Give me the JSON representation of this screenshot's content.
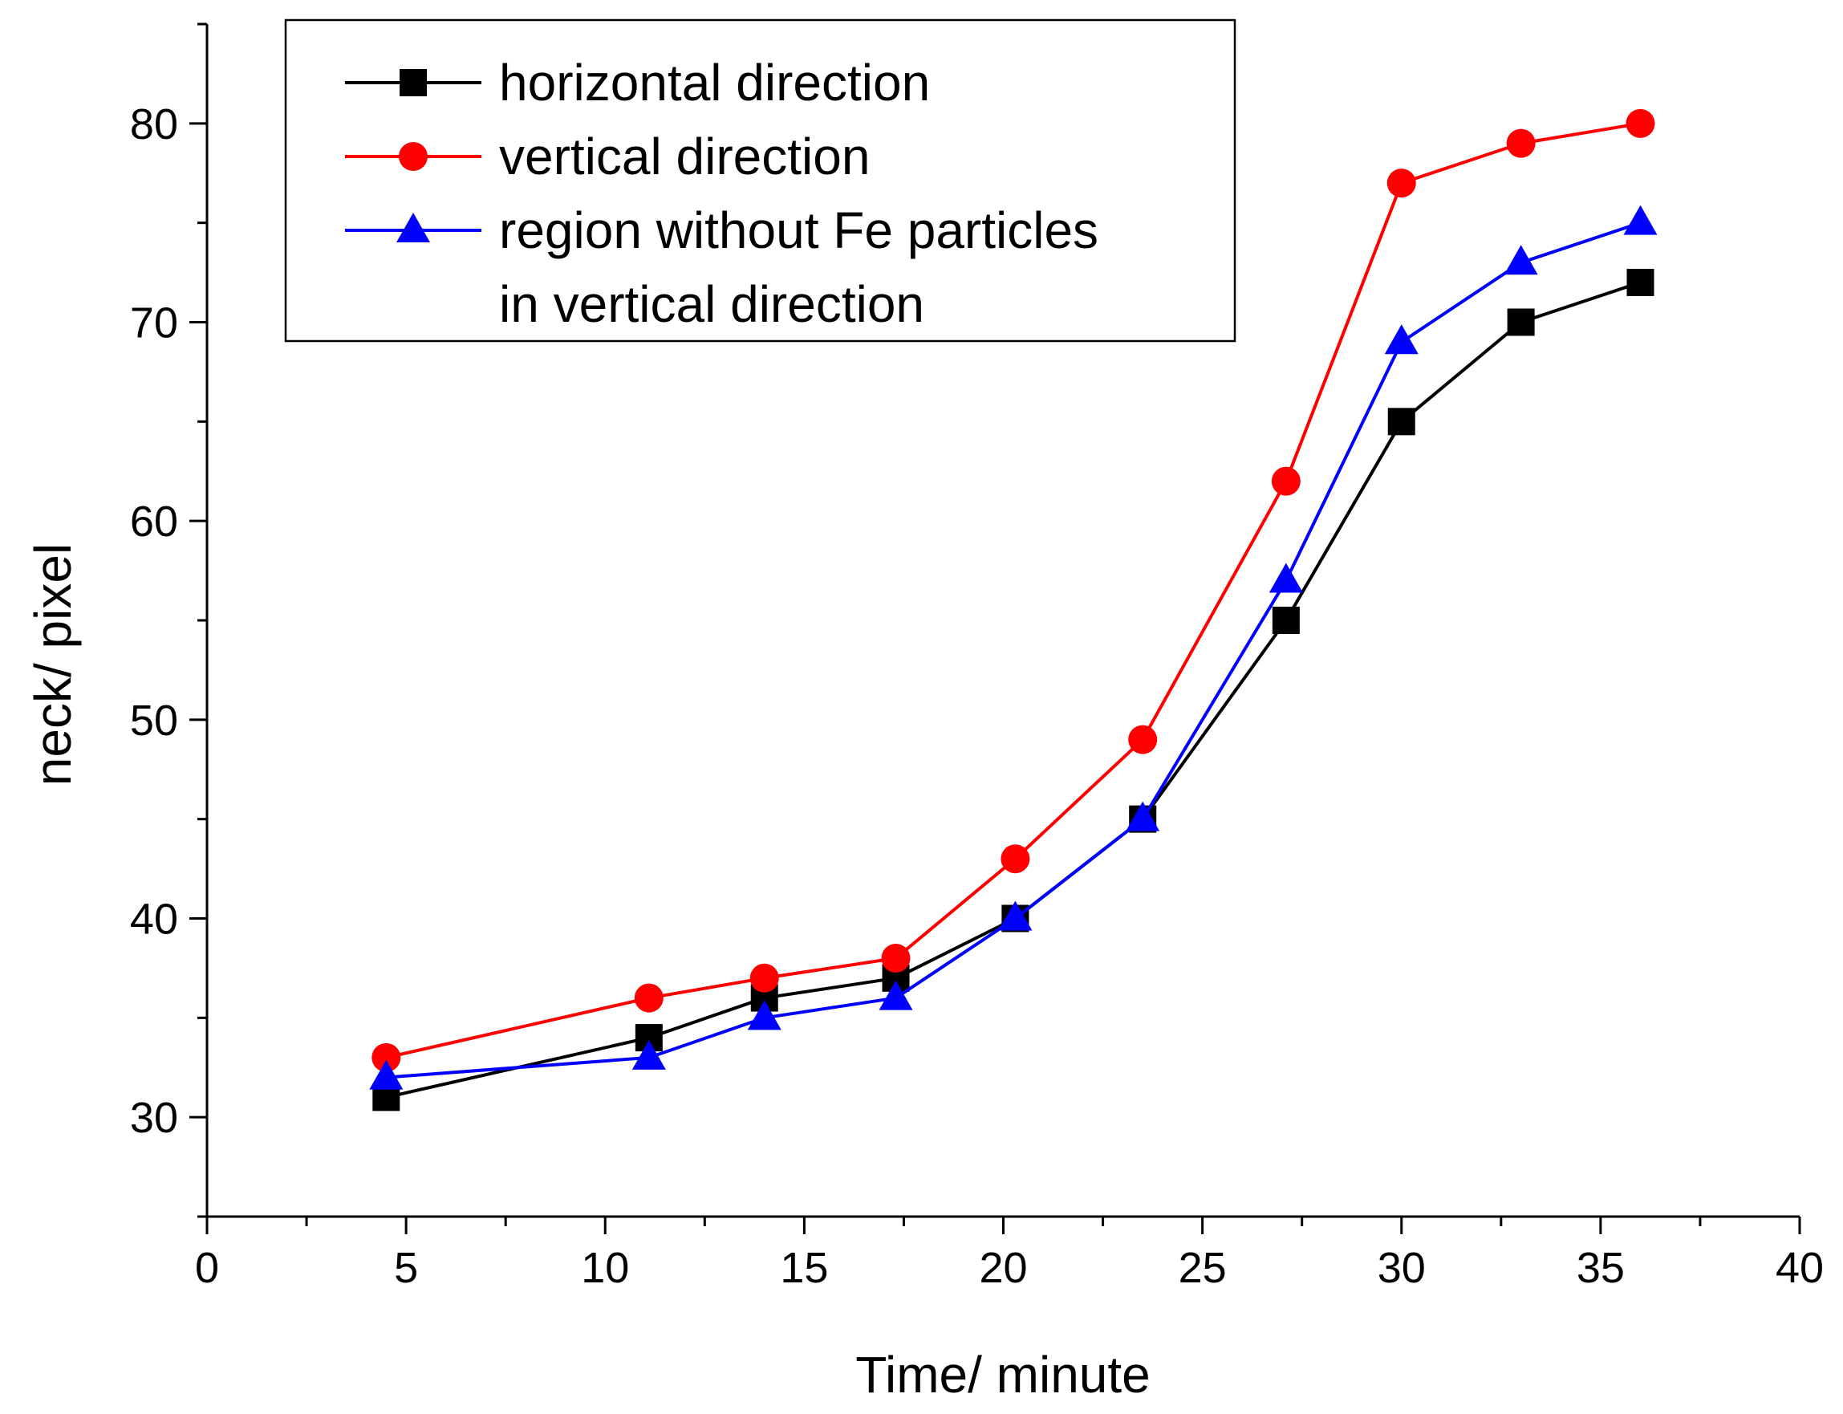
{
  "chart_data": {
    "type": "line",
    "title": "",
    "xlabel": "Time/ minute",
    "ylabel": "neck/ pixel",
    "xlim": [
      0,
      40
    ],
    "ylim": [
      25,
      85
    ],
    "xticks": [
      0,
      5,
      10,
      15,
      20,
      25,
      30,
      35,
      40
    ],
    "yticks": [
      30,
      40,
      50,
      60,
      70,
      80
    ],
    "x": [
      4.5,
      11.1,
      14,
      17.3,
      20.3,
      23.5,
      27.1,
      30,
      33,
      36
    ],
    "legend_position": "top-left",
    "series": [
      {
        "name": "horizontal direction",
        "color": "#000000",
        "marker": "square",
        "values": [
          31,
          34,
          36,
          37,
          40,
          45,
          55,
          65,
          70,
          72
        ]
      },
      {
        "name": "vertical direction",
        "color": "#ff0000",
        "marker": "circle",
        "values": [
          33,
          36,
          37,
          38,
          43,
          49,
          62,
          77,
          79,
          80
        ]
      },
      {
        "name": "region without Fe particles\nin vertical direction",
        "legend_lines": [
          "region without Fe particles",
          "in vertical direction"
        ],
        "color": "#0000ff",
        "marker": "triangle",
        "values": [
          32,
          33,
          35,
          36,
          40,
          45,
          57,
          69,
          73,
          75
        ]
      }
    ]
  }
}
